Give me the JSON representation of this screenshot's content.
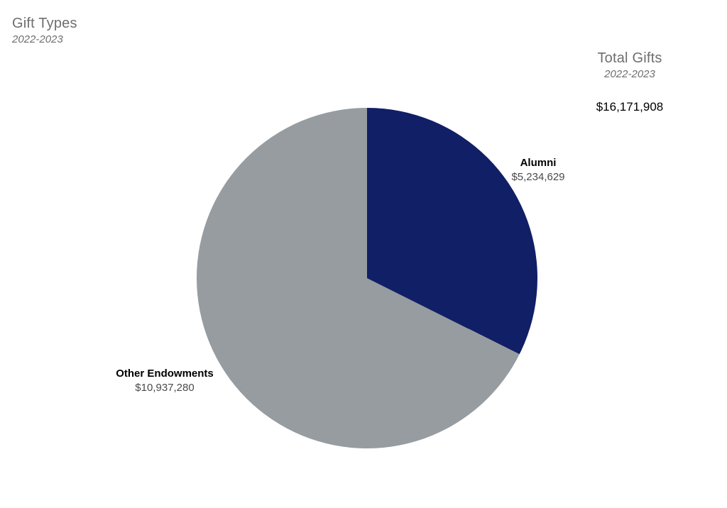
{
  "header": {
    "title": "Gift Types",
    "subtitle": "2022-2023"
  },
  "total_panel": {
    "title": "Total Gifts",
    "subtitle": "2022-2023",
    "value": "$16,171,908"
  },
  "chart_data": {
    "type": "pie",
    "title": "Gift Types",
    "subtitle": "2022-2023",
    "start_angle_deg": 0,
    "direction": "clockwise",
    "total_value": 16171908,
    "total_display": "$16,171,908",
    "slices": [
      {
        "label": "Alumni",
        "value": 5234629,
        "display_value": "$5,234,629",
        "color": "#101F66"
      },
      {
        "label": "Other Endowments",
        "value": 10937280,
        "display_value": "$10,937,280",
        "color": "#969C9F"
      }
    ],
    "colors": {
      "alumni_slice": "#101F66",
      "other_endowments_slice": "#969C9F",
      "heading_text": "#6E6E6E",
      "slice_label_text": "#000000",
      "slice_value_text": "#4A4A4A",
      "background": "#FFFFFF"
    },
    "legend": "none",
    "labels_position": "outside"
  }
}
